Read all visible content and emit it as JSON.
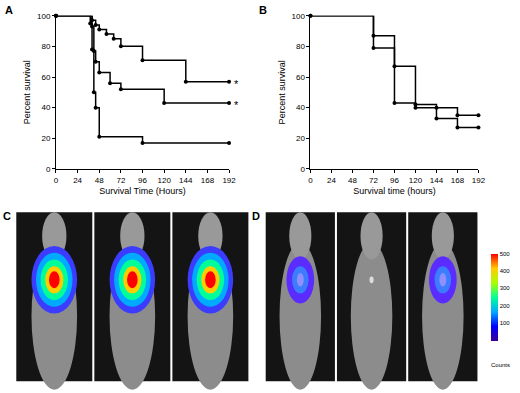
{
  "chart_data": [
    {
      "type": "line",
      "title": "A",
      "x_label": "Survival Time (Hours)",
      "y_label": "Percent survival",
      "xlim": [
        0,
        192
      ],
      "xticks": [
        0,
        24,
        48,
        72,
        96,
        120,
        144,
        168,
        192
      ],
      "ylim": [
        0,
        100
      ],
      "yticks": [
        0,
        20,
        40,
        60,
        80,
        100
      ],
      "series": [
        {
          "color": "#000000",
          "marker": "circle",
          "x": [
            0,
            40,
            44,
            48,
            56,
            64,
            72,
            96,
            144,
            192
          ],
          "values": [
            100,
            97,
            94,
            91,
            88,
            85,
            80,
            71,
            57,
            57
          ]
        },
        {
          "color": "#000000",
          "marker": "circle",
          "x": [
            0,
            40,
            42,
            44,
            48,
            60,
            72,
            120,
            192
          ],
          "values": [
            100,
            93,
            77,
            70,
            63,
            56,
            52,
            43,
            43
          ]
        },
        {
          "color": "#000000",
          "marker": "circle",
          "x": [
            0,
            38,
            40,
            42,
            44,
            48,
            96,
            192
          ],
          "values": [
            100,
            95,
            78,
            50,
            40,
            21,
            17,
            17
          ]
        }
      ],
      "annotations": [
        {
          "text": "*",
          "x": 192,
          "y": 57
        },
        {
          "text": "*",
          "x": 192,
          "y": 43
        }
      ]
    },
    {
      "type": "line",
      "title": "B",
      "x_label": "Survival time (hours)",
      "y_label": "Percent survival",
      "xlim": [
        0,
        192
      ],
      "xticks": [
        0,
        24,
        48,
        72,
        96,
        120,
        144,
        168,
        192
      ],
      "ylim": [
        0,
        100
      ],
      "yticks": [
        0,
        20,
        40,
        60,
        80,
        100
      ],
      "series": [
        {
          "color": "#000000",
          "marker": "circle",
          "x": [
            0,
            72,
            96,
            120,
            144,
            168,
            192
          ],
          "values": [
            100,
            87,
            67,
            42,
            40,
            35,
            35
          ]
        },
        {
          "color": "#000000",
          "marker": "circle",
          "x": [
            0,
            72,
            96,
            120,
            144,
            168,
            192
          ],
          "values": [
            100,
            79,
            43,
            40,
            33,
            27,
            27
          ]
        }
      ]
    },
    {
      "type": "image",
      "title": "C"
    },
    {
      "type": "image",
      "title": "D"
    },
    {
      "type": "colorbar",
      "title": "Counts",
      "range": [
        0,
        500
      ],
      "ticks": [
        100,
        200,
        300,
        400,
        500
      ],
      "colors": [
        "#3c0096",
        "#0000ff",
        "#00aaff",
        "#00ff99",
        "#aaff00",
        "#ffcc00",
        "#ff0000"
      ]
    }
  ]
}
